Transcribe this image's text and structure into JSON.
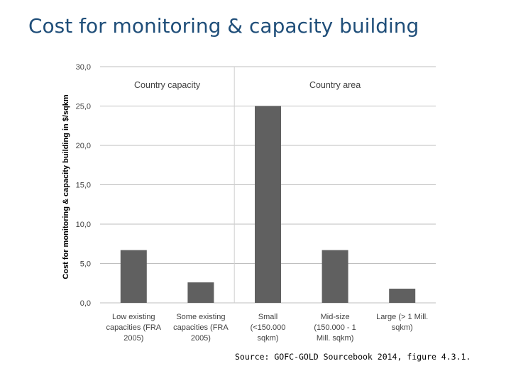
{
  "slide": {
    "title": "Cost for monitoring & capacity building",
    "source": "Source: GOFC-GOLD Sourcebook 2014, figure 4.3.1."
  },
  "chart_data": {
    "type": "bar",
    "title": "",
    "xlabel": "",
    "ylabel": "Cost for monitoring & capacity building in $/sqkm",
    "ylim": [
      0,
      30
    ],
    "yticks": [
      "0,0",
      "5,0",
      "10,0",
      "15,0",
      "20,0",
      "25,0",
      "30,0"
    ],
    "grid": true,
    "categories": [
      [
        "Low existing",
        "capacities (FRA",
        "2005)"
      ],
      [
        "Some existing",
        "capacities (FRA",
        "2005)"
      ],
      [
        "Small",
        "(<150.000",
        "sqkm)"
      ],
      [
        "Mid-size",
        "(150.000 - 1",
        "Mill. sqkm)"
      ],
      [
        "Large (> 1 Mill.",
        "sqkm)"
      ]
    ],
    "values": [
      6.7,
      2.6,
      25.0,
      6.7,
      1.8
    ],
    "groups": [
      {
        "label": "Country capacity",
        "categories": [
          0,
          1
        ]
      },
      {
        "label": "Country area",
        "categories": [
          2,
          3,
          4
        ]
      }
    ],
    "bar_color": "#606060",
    "grid_color": "#bfbfbf"
  }
}
